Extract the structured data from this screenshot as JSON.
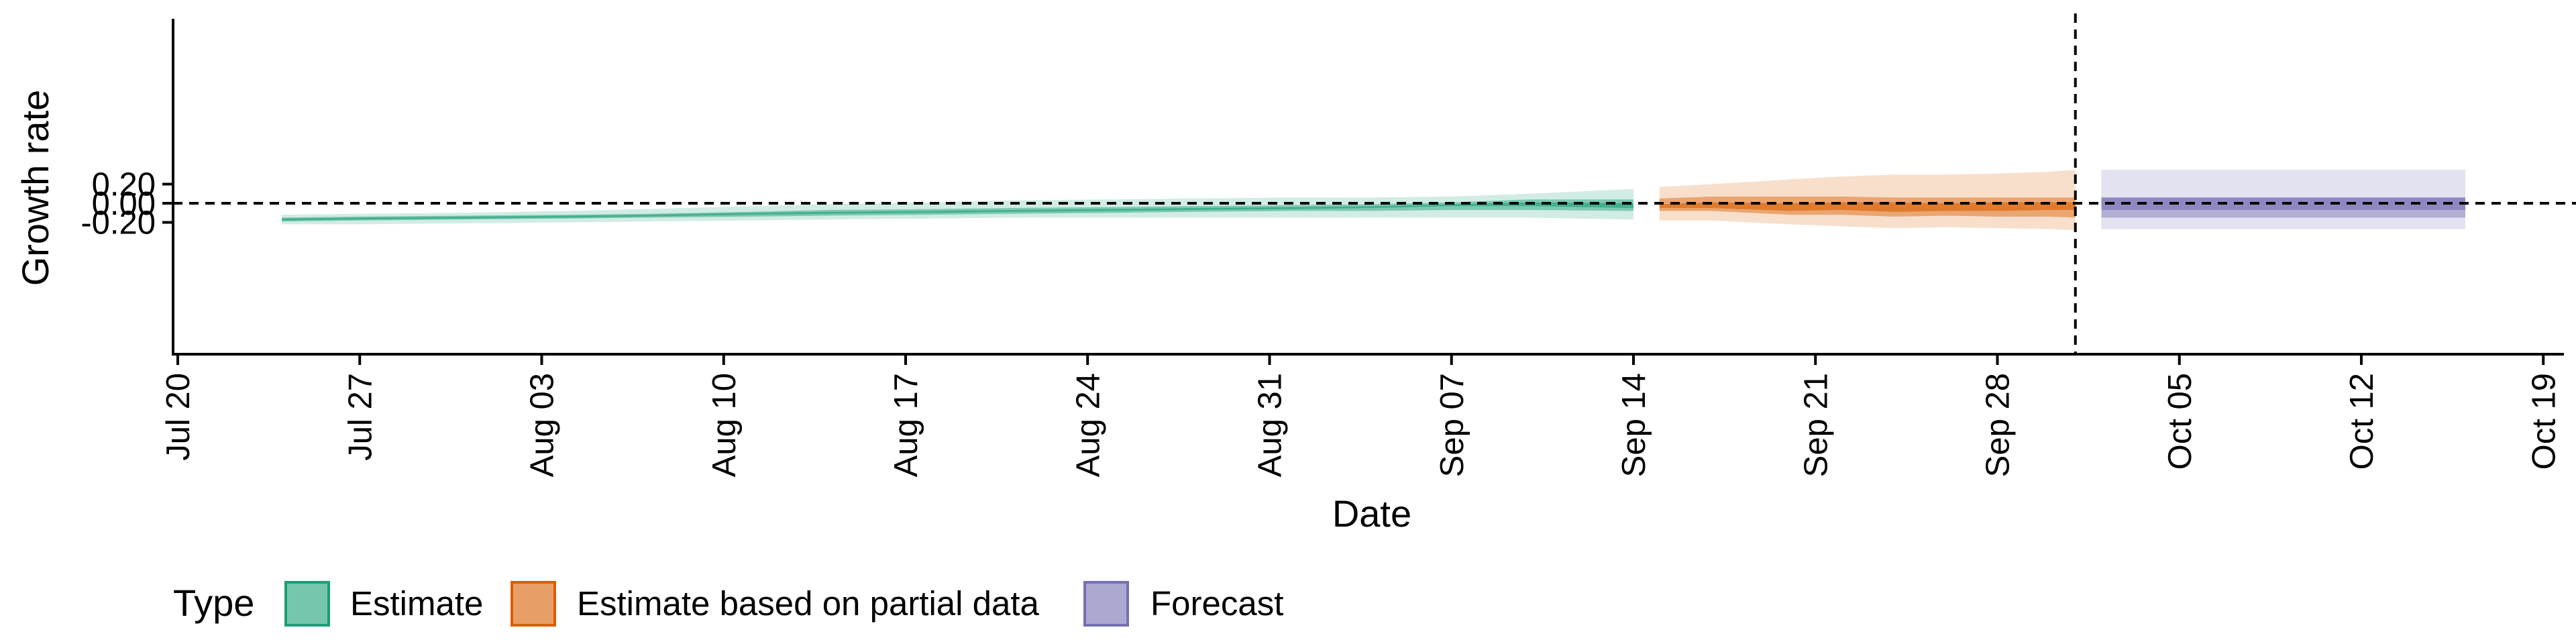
{
  "chart_data": {
    "type": "area",
    "xlabel": "Date",
    "ylabel": "Growth rate",
    "xlim": [
      "2020-07-19",
      "2020-10-19"
    ],
    "ylim": [
      -0.31,
      0.38
    ],
    "x_ticks": [
      "2020-07-20",
      "2020-07-27",
      "2020-08-03",
      "2020-08-10",
      "2020-08-17",
      "2020-08-24",
      "2020-08-31",
      "2020-09-07",
      "2020-09-14",
      "2020-09-21",
      "2020-09-28",
      "2020-10-05",
      "2020-10-12",
      "2020-10-19"
    ],
    "x_tick_labels": [
      "Jul 20",
      "Jul 27",
      "Aug 03",
      "Aug 10",
      "Aug 17",
      "Aug 24",
      "Aug 31",
      "Sep 07",
      "Sep 14",
      "Sep 21",
      "Sep 28",
      "Oct 05",
      "Oct 12",
      "Oct 19"
    ],
    "y_ticks": [
      0.2,
      0.0,
      -0.2
    ],
    "y_tick_labels": [
      "0.20",
      "0.00",
      "-0.20"
    ],
    "reference_lines": [
      {
        "orientation": "horizontal",
        "y": 0.0,
        "style": "dashed"
      },
      {
        "orientation": "vertical",
        "x": "2020-10-01",
        "style": "dashed"
      }
    ],
    "grid": false,
    "legend": {
      "title": "Type",
      "position": "bottom-left",
      "entries": [
        {
          "label": "Estimate",
          "color": "#1B9E77"
        },
        {
          "label": "Estimate based on partial data",
          "color": "#D95F02"
        },
        {
          "label": "Forecast",
          "color": "#7570B3"
        }
      ]
    },
    "series": [
      {
        "name": "Estimate",
        "color": "#1B9E77",
        "x": [
          "2020-07-24",
          "2020-07-27",
          "2020-07-31",
          "2020-08-04",
          "2020-08-07",
          "2020-08-11",
          "2020-08-14",
          "2020-08-18",
          "2020-08-21",
          "2020-08-25",
          "2020-08-28",
          "2020-09-01",
          "2020-09-04",
          "2020-09-07",
          "2020-09-10",
          "2020-09-14"
        ],
        "median": [
          -0.17,
          -0.16,
          -0.15,
          -0.14,
          -0.13,
          -0.11,
          -0.1,
          -0.09,
          -0.08,
          -0.07,
          -0.06,
          -0.05,
          -0.04,
          -0.02,
          -0.01,
          -0.03
        ],
        "lower_20": [
          -0.18,
          -0.17,
          -0.16,
          -0.15,
          -0.14,
          -0.12,
          -0.11,
          -0.1,
          -0.09,
          -0.08,
          -0.07,
          -0.06,
          -0.05,
          -0.03,
          -0.03,
          -0.05
        ],
        "upper_20": [
          -0.16,
          -0.15,
          -0.14,
          -0.13,
          -0.12,
          -0.1,
          -0.09,
          -0.08,
          -0.07,
          -0.06,
          -0.05,
          -0.04,
          -0.03,
          -0.01,
          0.01,
          0.0
        ],
        "lower_50": [
          -0.19,
          -0.18,
          -0.17,
          -0.16,
          -0.15,
          -0.14,
          -0.13,
          -0.12,
          -0.11,
          -0.1,
          -0.09,
          -0.08,
          -0.08,
          -0.07,
          -0.07,
          -0.08
        ],
        "upper_50": [
          -0.15,
          -0.14,
          -0.13,
          -0.12,
          -0.11,
          -0.09,
          -0.07,
          -0.06,
          -0.05,
          -0.04,
          -0.03,
          -0.02,
          -0.01,
          0.01,
          0.04,
          0.04
        ],
        "lower_90": [
          -0.22,
          -0.22,
          -0.21,
          -0.2,
          -0.19,
          -0.18,
          -0.17,
          -0.16,
          -0.15,
          -0.15,
          -0.15,
          -0.15,
          -0.15,
          -0.15,
          -0.15,
          -0.17
        ],
        "upper_90": [
          -0.12,
          -0.11,
          -0.1,
          -0.08,
          -0.06,
          -0.03,
          -0.01,
          0.01,
          0.03,
          0.04,
          0.05,
          0.06,
          0.06,
          0.07,
          0.1,
          0.15
        ]
      },
      {
        "name": "Estimate based on partial data",
        "color": "#D95F02",
        "x": [
          "2020-09-15",
          "2020-09-17",
          "2020-09-20",
          "2020-09-22",
          "2020-09-24",
          "2020-09-26",
          "2020-09-28",
          "2020-09-30",
          "2020-10-01"
        ],
        "median": [
          -0.03,
          -0.02,
          -0.04,
          -0.03,
          -0.04,
          -0.05,
          -0.04,
          -0.04,
          -0.04
        ],
        "lower_20": [
          -0.05,
          -0.05,
          -0.08,
          -0.07,
          -0.09,
          -0.08,
          -0.08,
          -0.07,
          -0.07
        ],
        "upper_20": [
          -0.01,
          0.01,
          0.0,
          0.01,
          0.01,
          0.0,
          0.01,
          0.01,
          0.01
        ],
        "lower_50": [
          -0.08,
          -0.08,
          -0.12,
          -0.12,
          -0.14,
          -0.13,
          -0.14,
          -0.14,
          -0.15
        ],
        "upper_50": [
          0.05,
          0.07,
          0.07,
          0.07,
          0.06,
          0.06,
          0.06,
          0.06,
          0.06
        ],
        "lower_90": [
          -0.18,
          -0.18,
          -0.22,
          -0.24,
          -0.26,
          -0.25,
          -0.26,
          -0.27,
          -0.28
        ],
        "upper_90": [
          0.17,
          0.2,
          0.25,
          0.28,
          0.3,
          0.3,
          0.31,
          0.33,
          0.35
        ]
      },
      {
        "name": "Forecast",
        "color": "#7570B3",
        "x": [
          "2020-10-02",
          "2020-10-16"
        ],
        "median": [
          -0.01,
          -0.01
        ],
        "lower_20": [
          -0.07,
          -0.07
        ],
        "upper_20": [
          0.06,
          0.06
        ],
        "lower_50": [
          -0.15,
          -0.15
        ],
        "upper_50": [
          0.06,
          0.06
        ],
        "lower_90": [
          -0.27,
          -0.27
        ],
        "upper_90": [
          0.35,
          0.35
        ]
      }
    ]
  }
}
